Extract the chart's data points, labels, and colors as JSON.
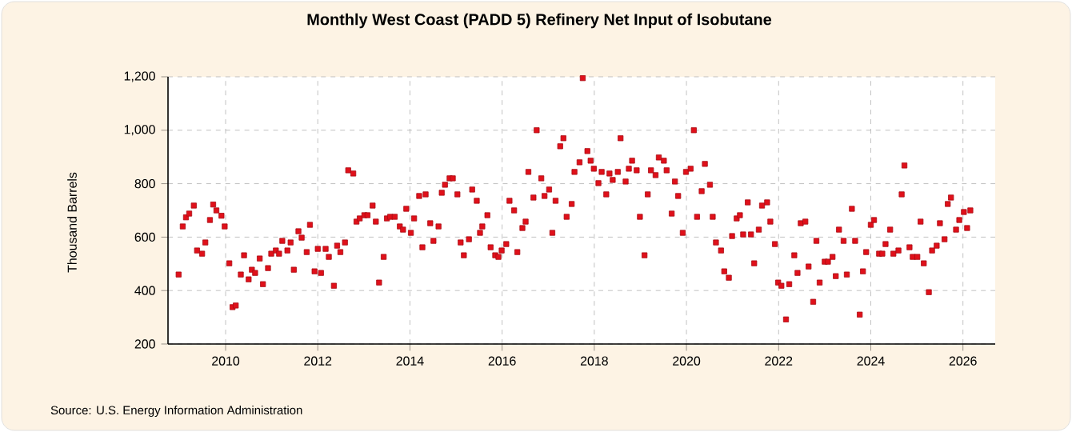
{
  "chart_data": {
    "type": "scatter",
    "title": "Monthly West Coast (PADD 5) Refinery Net Input of Isobutane",
    "ylabel": "Thousand Barrels",
    "annotations": [
      "Source: U.S. Energy Information Administration"
    ],
    "xlim": [
      2008.75,
      2026.7
    ],
    "xticks": [
      2010,
      2012,
      2014,
      2016,
      2018,
      2020,
      2022,
      2024,
      2026
    ],
    "ylim": [
      200,
      1200
    ],
    "yticks": [
      {
        "value": 200,
        "label": "200"
      },
      {
        "value": 400,
        "label": "400"
      },
      {
        "value": 600,
        "label": "600"
      },
      {
        "value": 800,
        "label": "800"
      },
      {
        "value": 1000,
        "label": "1,000"
      },
      {
        "value": 1200,
        "label": "1,200"
      }
    ],
    "grid": true,
    "marker": "square",
    "color": "#e0101a",
    "x": [
      2008.98,
      2009.07,
      2009.14,
      2009.21,
      2009.31,
      2009.38,
      2009.49,
      2009.56,
      2009.66,
      2009.73,
      2009.8,
      2009.91,
      2009.98,
      2010.08,
      2010.15,
      2010.22,
      2010.33,
      2010.4,
      2010.5,
      2010.57,
      2010.64,
      2010.74,
      2010.81,
      2010.92,
      2010.99,
      2011.09,
      2011.16,
      2011.23,
      2011.34,
      2011.41,
      2011.48,
      2011.58,
      2011.65,
      2011.76,
      2011.83,
      2011.93,
      2012.0,
      2012.07,
      2012.17,
      2012.24,
      2012.35,
      2012.42,
      2012.49,
      2012.59,
      2012.66,
      2012.77,
      2012.84,
      2012.91,
      2013.01,
      2013.08,
      2013.19,
      2013.26,
      2013.33,
      2013.43,
      2013.5,
      2013.57,
      2013.67,
      2013.78,
      2013.85,
      2013.92,
      2014.02,
      2014.09,
      2014.2,
      2014.27,
      2014.34,
      2014.44,
      2014.51,
      2014.62,
      2014.69,
      2014.76,
      2014.86,
      2014.93,
      2015.03,
      2015.1,
      2015.17,
      2015.28,
      2015.35,
      2015.45,
      2015.52,
      2015.57,
      2015.68,
      2015.75,
      2015.85,
      2015.92,
      2015.99,
      2016.09,
      2016.16,
      2016.26,
      2016.33,
      2016.44,
      2016.51,
      2016.57,
      2016.68,
      2016.75,
      2016.85,
      2016.92,
      2017.02,
      2017.09,
      2017.16,
      2017.26,
      2017.33,
      2017.4,
      2017.51,
      2017.57,
      2017.68,
      2017.75,
      2017.85,
      2017.92,
      2017.99,
      2018.09,
      2018.16,
      2018.26,
      2018.33,
      2018.4,
      2018.51,
      2018.57,
      2018.68,
      2018.75,
      2018.82,
      2018.92,
      2018.99,
      2019.09,
      2019.16,
      2019.23,
      2019.33,
      2019.4,
      2019.51,
      2019.57,
      2019.68,
      2019.75,
      2019.82,
      2019.92,
      2019.99,
      2020.09,
      2020.16,
      2020.23,
      2020.33,
      2020.4,
      2020.51,
      2020.57,
      2020.64,
      2020.75,
      2020.82,
      2020.92,
      2020.99,
      2021.09,
      2021.16,
      2021.23,
      2021.33,
      2021.4,
      2021.47,
      2021.57,
      2021.64,
      2021.75,
      2021.82,
      2021.92,
      2021.99,
      2022.06,
      2022.16,
      2022.23,
      2022.34,
      2022.41,
      2022.48,
      2022.58,
      2022.65,
      2022.75,
      2022.82,
      2022.89,
      2023.0,
      2023.07,
      2023.17,
      2023.24,
      2023.31,
      2023.41,
      2023.48,
      2023.59,
      2023.66,
      2023.76,
      2023.83,
      2023.9,
      2024.0,
      2024.07,
      2024.18,
      2024.25,
      2024.32,
      2024.42,
      2024.49,
      2024.6,
      2024.67,
      2024.73,
      2024.84,
      2024.91,
      2025.01,
      2025.08,
      2025.15,
      2025.26,
      2025.33,
      2025.43,
      2025.5,
      2025.6,
      2025.67,
      2025.74,
      2025.85,
      2025.92,
      2026.02,
      2026.09,
      2026.16
    ],
    "values": [
      460,
      640,
      674,
      688,
      718,
      550,
      538,
      580,
      664,
      722,
      700,
      680,
      640,
      502,
      338,
      344,
      460,
      532,
      442,
      478,
      466,
      520,
      424,
      484,
      538,
      550,
      538,
      586,
      550,
      580,
      478,
      622,
      598,
      544,
      646,
      472,
      556,
      466,
      556,
      526,
      418,
      568,
      544,
      580,
      850,
      838,
      658,
      670,
      682,
      682,
      718,
      658,
      430,
      526,
      670,
      676,
      676,
      640,
      628,
      706,
      616,
      670,
      754,
      562,
      760,
      652,
      586,
      640,
      766,
      796,
      820,
      820,
      760,
      580,
      532,
      592,
      778,
      736,
      616,
      640,
      682,
      562,
      532,
      526,
      550,
      574,
      736,
      700,
      544,
      634,
      658,
      844,
      748,
      1000,
      820,
      754,
      778,
      616,
      736,
      940,
      970,
      676,
      724,
      844,
      880,
      1195,
      922,
      886,
      856,
      802,
      844,
      760,
      838,
      814,
      844,
      970,
      808,
      856,
      886,
      850,
      676,
      532,
      760,
      850,
      832,
      898,
      886,
      850,
      688,
      808,
      754,
      616,
      844,
      856,
      1000,
      676,
      772,
      874,
      796,
      676,
      580,
      550,
      472,
      448,
      604,
      670,
      682,
      610,
      730,
      610,
      502,
      628,
      718,
      730,
      658,
      574,
      430,
      418,
      292,
      424,
      532,
      466,
      652,
      658,
      490,
      358,
      586,
      430,
      508,
      508,
      526,
      454,
      628,
      586,
      460,
      706,
      586,
      310,
      472,
      544,
      646,
      664,
      538,
      538,
      574,
      628,
      538,
      550,
      760,
      868,
      562,
      526,
      526,
      658,
      502,
      394,
      550,
      568,
      652,
      592,
      724,
      748,
      628,
      664,
      694,
      634,
      700
    ]
  }
}
